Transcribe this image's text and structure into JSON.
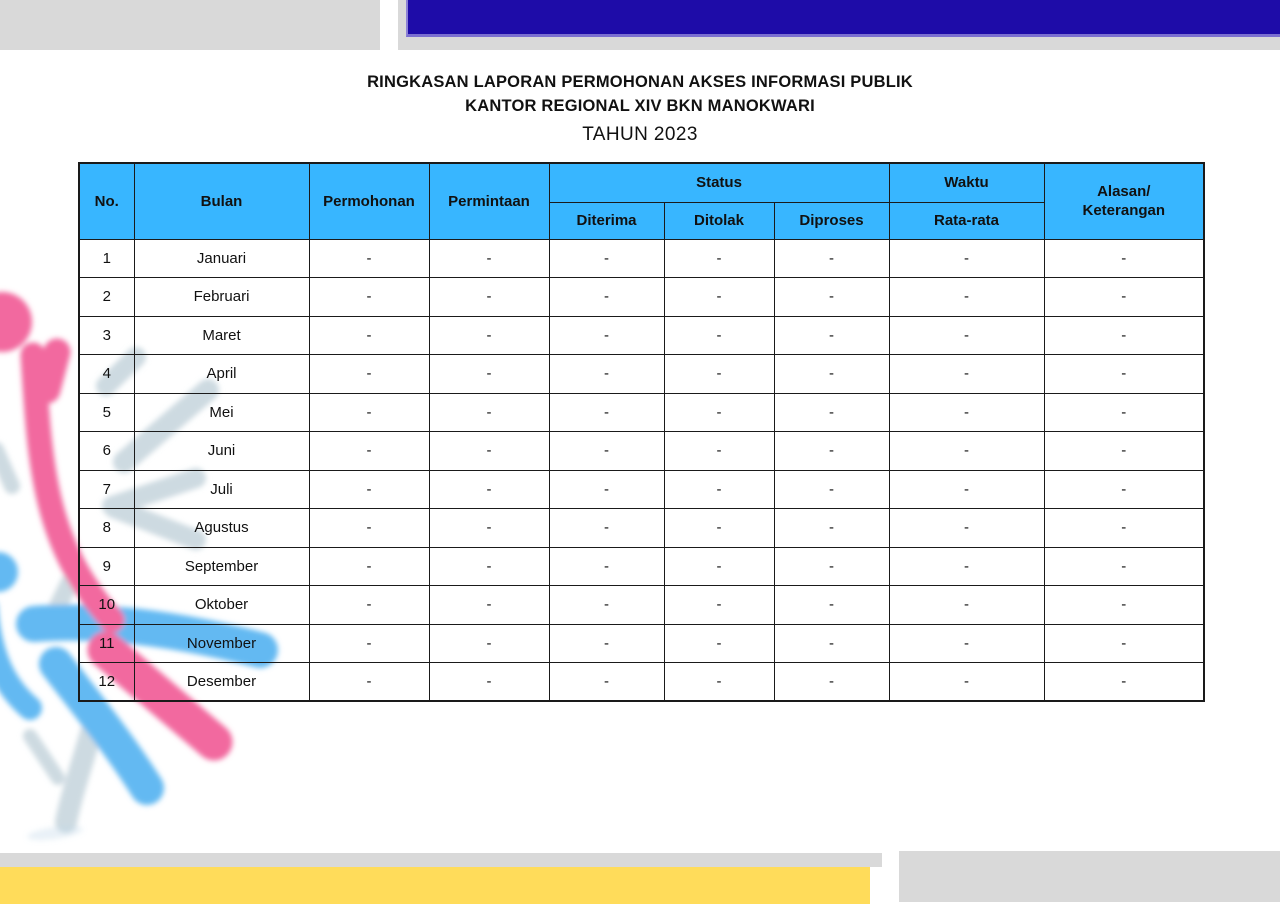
{
  "title": {
    "line1": "RINGKASAN LAPORAN PERMOHONAN AKSES INFORMASI PUBLIK",
    "line2": "KANTOR REGIONAL XIV BKN MANOKWARI",
    "line3": "TAHUN 2023"
  },
  "table": {
    "header": {
      "no": "No.",
      "bulan": "Bulan",
      "permohonan": "Permohonan",
      "permintaan": "Permintaan",
      "status": "Status",
      "diterima": "Diterima",
      "ditolak": "Ditolak",
      "diproses": "Diproses",
      "waktu": "Waktu",
      "rata_rata": "Rata-rata",
      "alasan_line1": "Alasan/",
      "alasan_line2": "Keterangan"
    },
    "rows": [
      {
        "no": "1",
        "bulan": "Januari",
        "permohonan": "-",
        "permintaan": "-",
        "diterima": "-",
        "ditolak": "-",
        "diproses": "-",
        "rata_rata": "-",
        "alasan": "-"
      },
      {
        "no": "2",
        "bulan": "Februari",
        "permohonan": "-",
        "permintaan": "-",
        "diterima": "-",
        "ditolak": "-",
        "diproses": "-",
        "rata_rata": "-",
        "alasan": "-"
      },
      {
        "no": "3",
        "bulan": "Maret",
        "permohonan": "-",
        "permintaan": "-",
        "diterima": "-",
        "ditolak": "-",
        "diproses": "-",
        "rata_rata": "-",
        "alasan": "-"
      },
      {
        "no": "4",
        "bulan": "April",
        "permohonan": "-",
        "permintaan": "-",
        "diterima": "-",
        "ditolak": "-",
        "diproses": "-",
        "rata_rata": "-",
        "alasan": "-"
      },
      {
        "no": "5",
        "bulan": "Mei",
        "permohonan": "-",
        "permintaan": "-",
        "diterima": "-",
        "ditolak": "-",
        "diproses": "-",
        "rata_rata": "-",
        "alasan": "-"
      },
      {
        "no": "6",
        "bulan": "Juni",
        "permohonan": "-",
        "permintaan": "-",
        "diterima": "-",
        "ditolak": "-",
        "diproses": "-",
        "rata_rata": "-",
        "alasan": "-"
      },
      {
        "no": "7",
        "bulan": "Juli",
        "permohonan": "-",
        "permintaan": "-",
        "diterima": "-",
        "ditolak": "-",
        "diproses": "-",
        "rata_rata": "-",
        "alasan": "-"
      },
      {
        "no": "8",
        "bulan": "Agustus",
        "permohonan": "-",
        "permintaan": "-",
        "diterima": "-",
        "ditolak": "-",
        "diproses": "-",
        "rata_rata": "-",
        "alasan": "-"
      },
      {
        "no": "9",
        "bulan": "September",
        "permohonan": "-",
        "permintaan": "-",
        "diterima": "-",
        "ditolak": "-",
        "diproses": "-",
        "rata_rata": "-",
        "alasan": "-"
      },
      {
        "no": "10",
        "bulan": "Oktober",
        "permohonan": "-",
        "permintaan": "-",
        "diterima": "-",
        "ditolak": "-",
        "diproses": "-",
        "rata_rata": "-",
        "alasan": "-"
      },
      {
        "no": "11",
        "bulan": "November",
        "permohonan": "-",
        "permintaan": "-",
        "diterima": "-",
        "ditolak": "-",
        "diproses": "-",
        "rata_rata": "-",
        "alasan": "-"
      },
      {
        "no": "12",
        "bulan": "Desember",
        "permohonan": "-",
        "permintaan": "-",
        "diterima": "-",
        "ditolak": "-",
        "diproses": "-",
        "rata_rata": "-",
        "alasan": "-"
      }
    ]
  },
  "colors": {
    "table_header_blue": "#38B6FF",
    "banner_dark_blue": "#1E0CA8",
    "bar_gray": "#D9D9D9",
    "bottom_yellow": "#FFDC5A",
    "decor_pink": "#F2699F",
    "decor_light_blue": "#64B9F2",
    "decor_pale_gray": "#CDDAE1"
  },
  "decor_shapes": [
    "pink-circle",
    "pink-bar",
    "pink-arc",
    "pink-diagonal-stroke",
    "blue-circle",
    "blue-band",
    "blue-edge-stroke",
    "blue-diagonal-stroke",
    "pale-starburst-strokes"
  ]
}
